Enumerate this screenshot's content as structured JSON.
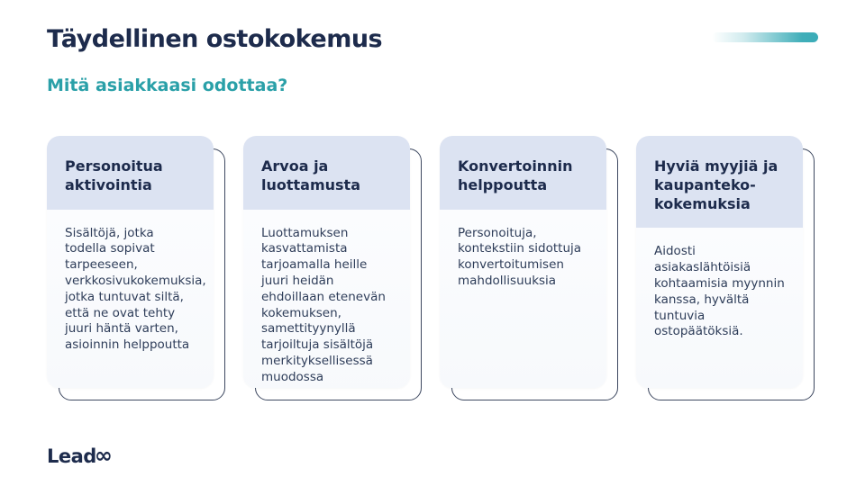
{
  "slide": {
    "title": "Täydellinen ostokokemus",
    "subtitle": "Mitä asiakkaasi odottaa?"
  },
  "cards": [
    {
      "heading": "Personoitua aktivointia",
      "body": "Sisältöjä, jotka todella sopivat tarpeeseen, verkkosivukokemuksia, jotka tuntuvat siltä, että ne ovat tehty juuri häntä varten, asioinnin helppoutta"
    },
    {
      "heading": "Arvoa ja luottamusta",
      "body": "Luottamuksen kasvattamista tarjoamalla heille juuri heidän ehdoillaan etenevän kokemuksen, samettityynyllä tarjoiltuja sisältöjä merkityksellisessä muodossa"
    },
    {
      "heading": "Konvertoinnin helppoutta",
      "body": "Personoituja, kontekstiin sidottuja konvertoitumisen mahdollisuuksia"
    },
    {
      "heading": "Hyviä myyjiä ja kaupanteko-kokemuksia",
      "body": "Aidosti asiakaslähtöisiä kohtaamisia myynnin kanssa, hyvältä tuntuvia ostopäätöksiä."
    }
  ],
  "footer": {
    "logo_text": "Lead",
    "logo_infinity": "∞"
  },
  "colors": {
    "navy": "#1d2b4c",
    "teal": "#2aa0a8",
    "card_header_bg": "#dce3f2",
    "card_body_bg": "#fafbfd",
    "outline": "#3d4860",
    "accent_gradient_end": "#3aacb8"
  }
}
